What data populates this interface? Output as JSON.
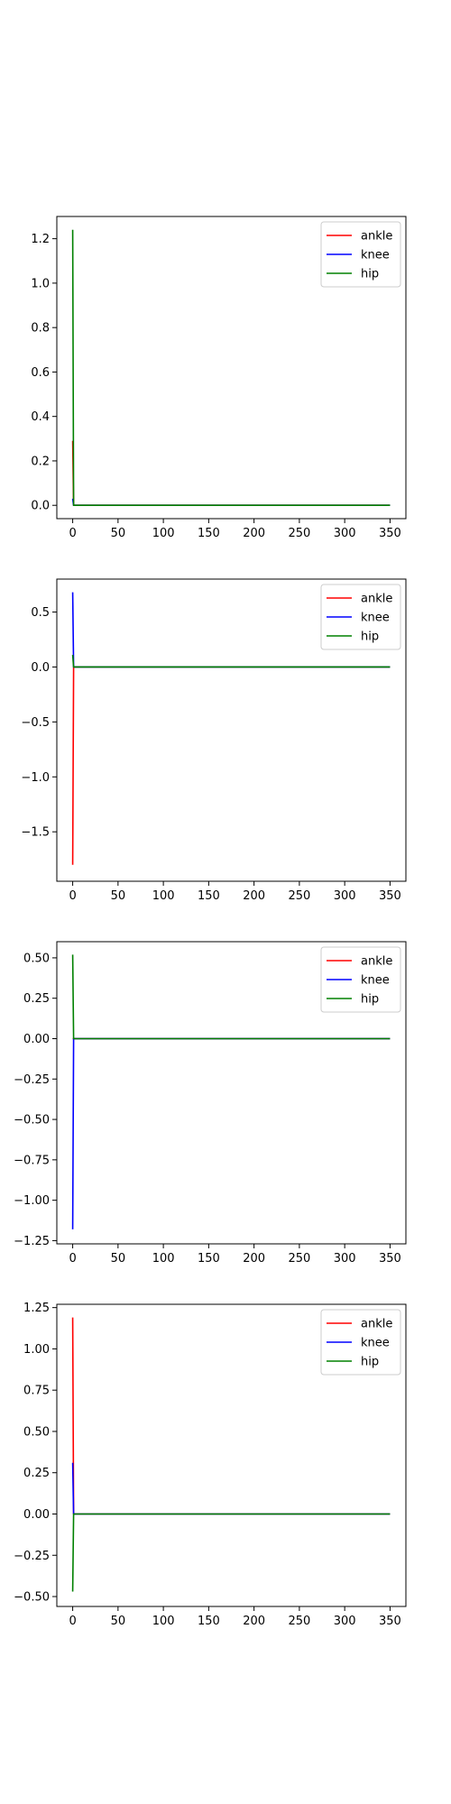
{
  "chart_data": [
    {
      "type": "line",
      "xlim": [
        -17.5,
        367.5
      ],
      "ylim": [
        -0.06,
        1.3
      ],
      "xticks": [
        0,
        50,
        100,
        150,
        200,
        250,
        300,
        350
      ],
      "xtick_labels": [
        "0",
        "50",
        "100",
        "150",
        "200",
        "250",
        "300",
        "350"
      ],
      "yticks": [
        0.0,
        0.2,
        0.4,
        0.6,
        0.8,
        1.0,
        1.2
      ],
      "ytick_labels": [
        "0.0",
        "0.2",
        "0.4",
        "0.6",
        "0.8",
        "1.0",
        "1.2"
      ],
      "legend_position": "top-right",
      "series": [
        {
          "name": "ankle",
          "color": "#ff0000",
          "x": [
            0,
            1,
            2,
            350
          ],
          "y": [
            0.29,
            0.0,
            0.0,
            0.0
          ]
        },
        {
          "name": "knee",
          "color": "#0000ff",
          "x": [
            0,
            1,
            2,
            350
          ],
          "y": [
            0.03,
            0.0,
            0.0,
            0.0
          ]
        },
        {
          "name": "hip",
          "color": "#008000",
          "x": [
            0,
            1,
            2,
            350
          ],
          "y": [
            1.24,
            0.0,
            0.0,
            0.0
          ]
        }
      ]
    },
    {
      "type": "line",
      "xlim": [
        -17.5,
        367.5
      ],
      "ylim": [
        -1.95,
        0.8
      ],
      "xticks": [
        0,
        50,
        100,
        150,
        200,
        250,
        300,
        350
      ],
      "xtick_labels": [
        "0",
        "50",
        "100",
        "150",
        "200",
        "250",
        "300",
        "350"
      ],
      "yticks": [
        0.5,
        0.0,
        -0.5,
        -1.0,
        -1.5
      ],
      "ytick_labels": [
        "0.5",
        "0.0",
        "−0.5",
        "−1.0",
        "−1.5"
      ],
      "legend_position": "top-right",
      "series": [
        {
          "name": "ankle",
          "color": "#ff0000",
          "x": [
            0,
            1,
            2,
            350
          ],
          "y": [
            -1.8,
            0.0,
            0.0,
            0.0
          ]
        },
        {
          "name": "knee",
          "color": "#0000ff",
          "x": [
            0,
            1,
            2,
            350
          ],
          "y": [
            0.68,
            0.0,
            0.0,
            0.0
          ]
        },
        {
          "name": "hip",
          "color": "#008000",
          "x": [
            0,
            1,
            2,
            350
          ],
          "y": [
            0.11,
            0.0,
            0.0,
            0.0
          ]
        }
      ]
    },
    {
      "type": "line",
      "xlim": [
        -17.5,
        367.5
      ],
      "ylim": [
        -1.27,
        0.6
      ],
      "xticks": [
        0,
        50,
        100,
        150,
        200,
        250,
        300,
        350
      ],
      "xtick_labels": [
        "0",
        "50",
        "100",
        "150",
        "200",
        "250",
        "300",
        "350"
      ],
      "yticks": [
        0.5,
        0.25,
        0.0,
        -0.25,
        -0.5,
        -0.75,
        -1.0,
        -1.25
      ],
      "ytick_labels": [
        "0.50",
        "0.25",
        "0.00",
        "−0.25",
        "−0.50",
        "−0.75",
        "−1.00",
        "−1.25"
      ],
      "legend_position": "top-right",
      "series": [
        {
          "name": "ankle",
          "color": "#ff0000",
          "x": [
            0,
            1,
            2,
            350
          ],
          "y": [
            0.0,
            0.0,
            0.0,
            0.0
          ]
        },
        {
          "name": "knee",
          "color": "#0000ff",
          "x": [
            0,
            1,
            2,
            350
          ],
          "y": [
            -1.18,
            0.0,
            0.0,
            0.0
          ]
        },
        {
          "name": "hip",
          "color": "#008000",
          "x": [
            0,
            1,
            2,
            350
          ],
          "y": [
            0.52,
            0.0,
            0.0,
            0.0
          ]
        }
      ]
    },
    {
      "type": "line",
      "xlim": [
        -17.5,
        367.5
      ],
      "ylim": [
        -0.56,
        1.27
      ],
      "xticks": [
        0,
        50,
        100,
        150,
        200,
        250,
        300,
        350
      ],
      "xtick_labels": [
        "0",
        "50",
        "100",
        "150",
        "200",
        "250",
        "300",
        "350"
      ],
      "yticks": [
        1.25,
        1.0,
        0.75,
        0.5,
        0.25,
        0.0,
        -0.25,
        -0.5
      ],
      "ytick_labels": [
        "1.25",
        "1.00",
        "0.75",
        "0.50",
        "0.25",
        "0.00",
        "−0.25",
        "−0.50"
      ],
      "legend_position": "top-right",
      "series": [
        {
          "name": "ankle",
          "color": "#ff0000",
          "x": [
            0,
            1,
            2,
            350
          ],
          "y": [
            1.19,
            0.0,
            0.0,
            0.0
          ]
        },
        {
          "name": "knee",
          "color": "#0000ff",
          "x": [
            0,
            1,
            2,
            350
          ],
          "y": [
            0.31,
            0.0,
            0.0,
            0.0
          ]
        },
        {
          "name": "hip",
          "color": "#008000",
          "x": [
            0,
            1,
            2,
            350
          ],
          "y": [
            -0.47,
            0.0,
            0.0,
            0.0
          ]
        }
      ]
    }
  ]
}
